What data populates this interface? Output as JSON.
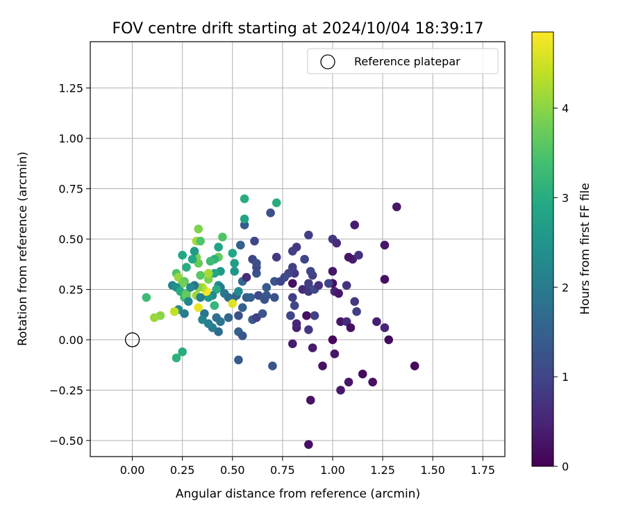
{
  "chart_data": {
    "type": "scatter",
    "title": "FOV centre drift starting at 2024/10/04 18:39:17",
    "xlabel": "Angular distance from reference (arcmin)",
    "ylabel": "Rotation from reference (arcmin)",
    "xlim": [
      -0.21,
      1.86
    ],
    "ylim": [
      -0.58,
      1.48
    ],
    "x_ticks": [
      0.0,
      0.25,
      0.5,
      0.75,
      1.0,
      1.25,
      1.5,
      1.75
    ],
    "x_tick_labels": [
      "0.00",
      "0.25",
      "0.50",
      "0.75",
      "1.00",
      "1.25",
      "1.50",
      "1.75"
    ],
    "y_ticks": [
      -0.5,
      -0.25,
      0.0,
      0.25,
      0.5,
      0.75,
      1.0,
      1.25
    ],
    "y_tick_labels": [
      "−0.50",
      "−0.25",
      "0.00",
      "0.25",
      "0.50",
      "0.75",
      "1.00",
      "1.25"
    ],
    "grid": true,
    "legend": {
      "placement": "top-right",
      "entries": [
        "Reference platepar"
      ]
    },
    "reference_point": {
      "x": 0.0,
      "y": 0.0,
      "marker": "open-circle"
    },
    "colorbar": {
      "label": "Hours from first FF file",
      "colormap": "viridis",
      "range": [
        0,
        4.85
      ],
      "ticks": [
        0,
        1,
        2,
        3,
        4
      ],
      "tick_labels": [
        "0",
        "1",
        "2",
        "3",
        "4"
      ]
    },
    "points": [
      {
        "x": 0.88,
        "y": -0.52,
        "c": 0.2
      },
      {
        "x": 0.89,
        "y": -0.3,
        "c": 0.25
      },
      {
        "x": 1.41,
        "y": -0.13,
        "c": 0.1
      },
      {
        "x": 1.15,
        "y": -0.17,
        "c": 0.15
      },
      {
        "x": 1.2,
        "y": -0.21,
        "c": 0.2
      },
      {
        "x": 1.08,
        "y": -0.21,
        "c": 0.3
      },
      {
        "x": 1.04,
        "y": -0.25,
        "c": 0.35
      },
      {
        "x": 0.95,
        "y": -0.13,
        "c": 0.25
      },
      {
        "x": 1.01,
        "y": -0.07,
        "c": 0.3
      },
      {
        "x": 0.9,
        "y": -0.04,
        "c": 0.35
      },
      {
        "x": 0.8,
        "y": -0.02,
        "c": 0.4
      },
      {
        "x": 1.0,
        "y": 0.0,
        "c": 0.1
      },
      {
        "x": 1.28,
        "y": 0.0,
        "c": 0.15
      },
      {
        "x": 1.26,
        "y": 0.06,
        "c": 0.5
      },
      {
        "x": 1.22,
        "y": 0.09,
        "c": 0.4
      },
      {
        "x": 1.04,
        "y": 0.09,
        "c": 0.3
      },
      {
        "x": 1.07,
        "y": 0.09,
        "c": 0.6
      },
      {
        "x": 1.09,
        "y": 0.06,
        "c": 0.2
      },
      {
        "x": 0.82,
        "y": 0.06,
        "c": 0.45
      },
      {
        "x": 0.87,
        "y": 0.12,
        "c": 0.2
      },
      {
        "x": 0.82,
        "y": 0.08,
        "c": 0.5
      },
      {
        "x": 0.88,
        "y": 0.05,
        "c": 0.8
      },
      {
        "x": 0.91,
        "y": 0.12,
        "c": 0.9
      },
      {
        "x": 0.79,
        "y": 0.12,
        "c": 1.0
      },
      {
        "x": 1.12,
        "y": 0.14,
        "c": 0.9
      },
      {
        "x": 1.11,
        "y": 0.19,
        "c": 0.8
      },
      {
        "x": 0.81,
        "y": 0.17,
        "c": 1.0
      },
      {
        "x": 0.8,
        "y": 0.21,
        "c": 0.9
      },
      {
        "x": 1.01,
        "y": 0.24,
        "c": 0.5
      },
      {
        "x": 1.03,
        "y": 0.23,
        "c": 0.3
      },
      {
        "x": 1.0,
        "y": 0.28,
        "c": 0.2
      },
      {
        "x": 1.07,
        "y": 0.27,
        "c": 0.7
      },
      {
        "x": 0.8,
        "y": 0.28,
        "c": 0.2
      },
      {
        "x": 0.85,
        "y": 0.25,
        "c": 0.6
      },
      {
        "x": 0.88,
        "y": 0.24,
        "c": 0.8
      },
      {
        "x": 0.88,
        "y": 0.28,
        "c": 0.9
      },
      {
        "x": 0.91,
        "y": 0.25,
        "c": 1.1
      },
      {
        "x": 0.93,
        "y": 0.27,
        "c": 0.7
      },
      {
        "x": 0.98,
        "y": 0.28,
        "c": 1.0
      },
      {
        "x": 1.26,
        "y": 0.3,
        "c": 0.2
      },
      {
        "x": 1.0,
        "y": 0.34,
        "c": 0.3
      },
      {
        "x": 0.9,
        "y": 0.32,
        "c": 0.9
      },
      {
        "x": 0.89,
        "y": 0.34,
        "c": 1.0
      },
      {
        "x": 0.81,
        "y": 0.33,
        "c": 0.8
      },
      {
        "x": 0.8,
        "y": 0.36,
        "c": 0.9
      },
      {
        "x": 0.78,
        "y": 0.33,
        "c": 1.0
      },
      {
        "x": 0.76,
        "y": 0.31,
        "c": 1.1
      },
      {
        "x": 0.86,
        "y": 0.4,
        "c": 1.0
      },
      {
        "x": 1.1,
        "y": 0.4,
        "c": 0.4
      },
      {
        "x": 1.08,
        "y": 0.41,
        "c": 0.3
      },
      {
        "x": 1.13,
        "y": 0.42,
        "c": 0.7
      },
      {
        "x": 1.26,
        "y": 0.47,
        "c": 0.3
      },
      {
        "x": 1.0,
        "y": 0.5,
        "c": 0.8
      },
      {
        "x": 1.02,
        "y": 0.48,
        "c": 0.6
      },
      {
        "x": 0.88,
        "y": 0.52,
        "c": 0.9
      },
      {
        "x": 0.82,
        "y": 0.46,
        "c": 0.8
      },
      {
        "x": 0.8,
        "y": 0.44,
        "c": 0.9
      },
      {
        "x": 0.72,
        "y": 0.41,
        "c": 0.8
      },
      {
        "x": 1.11,
        "y": 0.57,
        "c": 0.4
      },
      {
        "x": 1.32,
        "y": 0.66,
        "c": 0.3
      },
      {
        "x": 0.69,
        "y": 0.63,
        "c": 1.2
      },
      {
        "x": 0.7,
        "y": -0.13,
        "c": 1.3
      },
      {
        "x": 0.53,
        "y": -0.1,
        "c": 1.4
      },
      {
        "x": 0.53,
        "y": 0.04,
        "c": 1.5
      },
      {
        "x": 0.55,
        "y": 0.02,
        "c": 1.3
      },
      {
        "x": 0.6,
        "y": 0.1,
        "c": 1.4
      },
      {
        "x": 0.62,
        "y": 0.11,
        "c": 0.9
      },
      {
        "x": 0.65,
        "y": 0.13,
        "c": 1.3
      },
      {
        "x": 0.53,
        "y": 0.12,
        "c": 1.2
      },
      {
        "x": 0.55,
        "y": 0.16,
        "c": 1.5
      },
      {
        "x": 0.48,
        "y": 0.11,
        "c": 1.6
      },
      {
        "x": 0.43,
        "y": 0.04,
        "c": 1.7
      },
      {
        "x": 0.44,
        "y": 0.09,
        "c": 1.9
      },
      {
        "x": 0.4,
        "y": 0.06,
        "c": 2.0
      },
      {
        "x": 0.42,
        "y": 0.11,
        "c": 1.8
      },
      {
        "x": 0.38,
        "y": 0.08,
        "c": 2.1
      },
      {
        "x": 0.36,
        "y": 0.13,
        "c": 1.9
      },
      {
        "x": 0.35,
        "y": 0.1,
        "c": 2.2
      },
      {
        "x": 0.5,
        "y": 0.2,
        "c": 1.8
      },
      {
        "x": 0.52,
        "y": 0.22,
        "c": 1.6
      },
      {
        "x": 0.57,
        "y": 0.21,
        "c": 1.4
      },
      {
        "x": 0.59,
        "y": 0.21,
        "c": 1.5
      },
      {
        "x": 0.63,
        "y": 0.22,
        "c": 1.1
      },
      {
        "x": 0.66,
        "y": 0.2,
        "c": 1.2
      },
      {
        "x": 0.67,
        "y": 0.22,
        "c": 1.3
      },
      {
        "x": 0.71,
        "y": 0.21,
        "c": 1.2
      },
      {
        "x": 0.67,
        "y": 0.26,
        "c": 1.4
      },
      {
        "x": 0.71,
        "y": 0.29,
        "c": 1.3
      },
      {
        "x": 0.74,
        "y": 0.29,
        "c": 1.0
      },
      {
        "x": 0.55,
        "y": 0.29,
        "c": 1.6
      },
      {
        "x": 0.57,
        "y": 0.31,
        "c": 0.6
      },
      {
        "x": 0.62,
        "y": 0.33,
        "c": 1.2
      },
      {
        "x": 0.62,
        "y": 0.36,
        "c": 1.1
      },
      {
        "x": 0.6,
        "y": 0.4,
        "c": 1.0
      },
      {
        "x": 0.62,
        "y": 0.38,
        "c": 1.2
      },
      {
        "x": 0.61,
        "y": 0.49,
        "c": 1.0
      },
      {
        "x": 0.54,
        "y": 0.47,
        "c": 1.5
      },
      {
        "x": 0.56,
        "y": 0.57,
        "c": 1.4
      },
      {
        "x": 0.56,
        "y": 0.6,
        "c": 2.8
      },
      {
        "x": 0.56,
        "y": 0.7,
        "c": 3.0
      },
      {
        "x": 0.72,
        "y": 0.68,
        "c": 3.0
      },
      {
        "x": 0.53,
        "y": 0.24,
        "c": 2.3
      },
      {
        "x": 0.51,
        "y": 0.34,
        "c": 2.5
      },
      {
        "x": 0.51,
        "y": 0.38,
        "c": 2.7
      },
      {
        "x": 0.5,
        "y": 0.43,
        "c": 2.9
      },
      {
        "x": 0.45,
        "y": 0.51,
        "c": 3.5
      },
      {
        "x": 0.43,
        "y": 0.46,
        "c": 2.8
      },
      {
        "x": 0.43,
        "y": 0.41,
        "c": 3.7
      },
      {
        "x": 0.41,
        "y": 0.4,
        "c": 3.1
      },
      {
        "x": 0.39,
        "y": 0.39,
        "c": 3.3
      },
      {
        "x": 0.44,
        "y": 0.34,
        "c": 2.6
      },
      {
        "x": 0.41,
        "y": 0.33,
        "c": 2.9
      },
      {
        "x": 0.43,
        "y": 0.27,
        "c": 2.4
      },
      {
        "x": 0.44,
        "y": 0.26,
        "c": 2.0
      },
      {
        "x": 0.42,
        "y": 0.25,
        "c": 3.0
      },
      {
        "x": 0.46,
        "y": 0.23,
        "c": 1.9
      },
      {
        "x": 0.48,
        "y": 0.21,
        "c": 1.7
      },
      {
        "x": 0.5,
        "y": 0.18,
        "c": 4.6
      },
      {
        "x": 0.4,
        "y": 0.22,
        "c": 2.3
      },
      {
        "x": 0.38,
        "y": 0.21,
        "c": 2.6
      },
      {
        "x": 0.41,
        "y": 0.17,
        "c": 3.2
      },
      {
        "x": 0.37,
        "y": 0.24,
        "c": 4.8
      },
      {
        "x": 0.35,
        "y": 0.26,
        "c": 4.3
      },
      {
        "x": 0.33,
        "y": 0.26,
        "c": 4.0
      },
      {
        "x": 0.32,
        "y": 0.22,
        "c": 4.1
      },
      {
        "x": 0.33,
        "y": 0.16,
        "c": 4.7
      },
      {
        "x": 0.34,
        "y": 0.21,
        "c": 2.1
      },
      {
        "x": 0.31,
        "y": 0.27,
        "c": 1.9
      },
      {
        "x": 0.38,
        "y": 0.3,
        "c": 3.9
      },
      {
        "x": 0.38,
        "y": 0.33,
        "c": 4.2
      },
      {
        "x": 0.34,
        "y": 0.32,
        "c": 3.6
      },
      {
        "x": 0.33,
        "y": 0.38,
        "c": 3.7
      },
      {
        "x": 0.32,
        "y": 0.41,
        "c": 3.9
      },
      {
        "x": 0.31,
        "y": 0.44,
        "c": 2.6
      },
      {
        "x": 0.3,
        "y": 0.4,
        "c": 2.9
      },
      {
        "x": 0.32,
        "y": 0.49,
        "c": 4.2
      },
      {
        "x": 0.34,
        "y": 0.49,
        "c": 3.5
      },
      {
        "x": 0.33,
        "y": 0.55,
        "c": 3.9
      },
      {
        "x": 0.27,
        "y": 0.36,
        "c": 3.0
      },
      {
        "x": 0.25,
        "y": 0.42,
        "c": 2.9
      },
      {
        "x": 0.22,
        "y": 0.33,
        "c": 3.5
      },
      {
        "x": 0.23,
        "y": 0.31,
        "c": 4.1
      },
      {
        "x": 0.26,
        "y": 0.29,
        "c": 3.6
      },
      {
        "x": 0.25,
        "y": 0.28,
        "c": 3.8
      },
      {
        "x": 0.2,
        "y": 0.27,
        "c": 2.2
      },
      {
        "x": 0.22,
        "y": 0.26,
        "c": 2.4
      },
      {
        "x": 0.24,
        "y": 0.24,
        "c": 3.0
      },
      {
        "x": 0.27,
        "y": 0.23,
        "c": 3.6
      },
      {
        "x": 0.29,
        "y": 0.26,
        "c": 2.3
      },
      {
        "x": 0.26,
        "y": 0.21,
        "c": 3.3
      },
      {
        "x": 0.27,
        "y": 0.22,
        "c": 3.7
      },
      {
        "x": 0.28,
        "y": 0.19,
        "c": 2.2
      },
      {
        "x": 0.23,
        "y": 0.15,
        "c": 2.3
      },
      {
        "x": 0.21,
        "y": 0.14,
        "c": 4.4
      },
      {
        "x": 0.26,
        "y": 0.13,
        "c": 2.0
      },
      {
        "x": 0.14,
        "y": 0.12,
        "c": 4.0
      },
      {
        "x": 0.11,
        "y": 0.11,
        "c": 4.1
      },
      {
        "x": 0.07,
        "y": 0.21,
        "c": 3.3
      },
      {
        "x": 0.25,
        "y": -0.06,
        "c": 3.0
      },
      {
        "x": 0.22,
        "y": -0.09,
        "c": 3.1
      }
    ]
  }
}
